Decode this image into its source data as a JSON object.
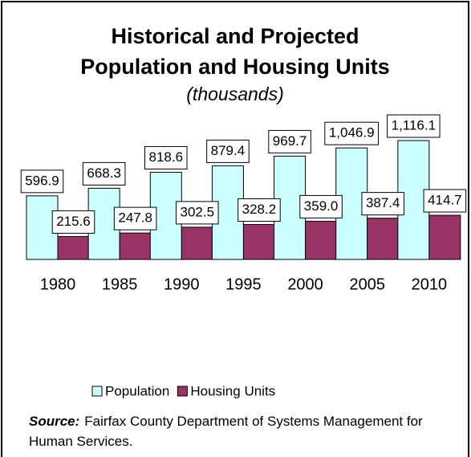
{
  "chart_data": {
    "type": "bar",
    "title": [
      "Historical and Projected",
      "Population and Housing Units"
    ],
    "subtitle": "(thousands)",
    "categories": [
      "1980",
      "1985",
      "1990",
      "1995",
      "2000",
      "2005",
      "2010"
    ],
    "series": [
      {
        "name": "Population",
        "color": "#ccffff",
        "values": [
          596.9,
          668.3,
          818.6,
          879.4,
          969.7,
          1046.9,
          1116.1
        ],
        "value_labels": [
          "596.9",
          "668.3",
          "818.6",
          "879.4",
          "969.7",
          "1,046.9",
          "1,116.1"
        ]
      },
      {
        "name": "Housing Units",
        "color": "#993366",
        "values": [
          215.6,
          247.8,
          302.5,
          328.2,
          359.0,
          387.4,
          414.7
        ],
        "value_labels": [
          "215.6",
          "247.8",
          "302.5",
          "328.2",
          "359.0",
          "387.4",
          "414.7"
        ]
      }
    ],
    "source_label": "Source:",
    "source_text": "Fairfax County Department of Systems Management for Human Services."
  }
}
